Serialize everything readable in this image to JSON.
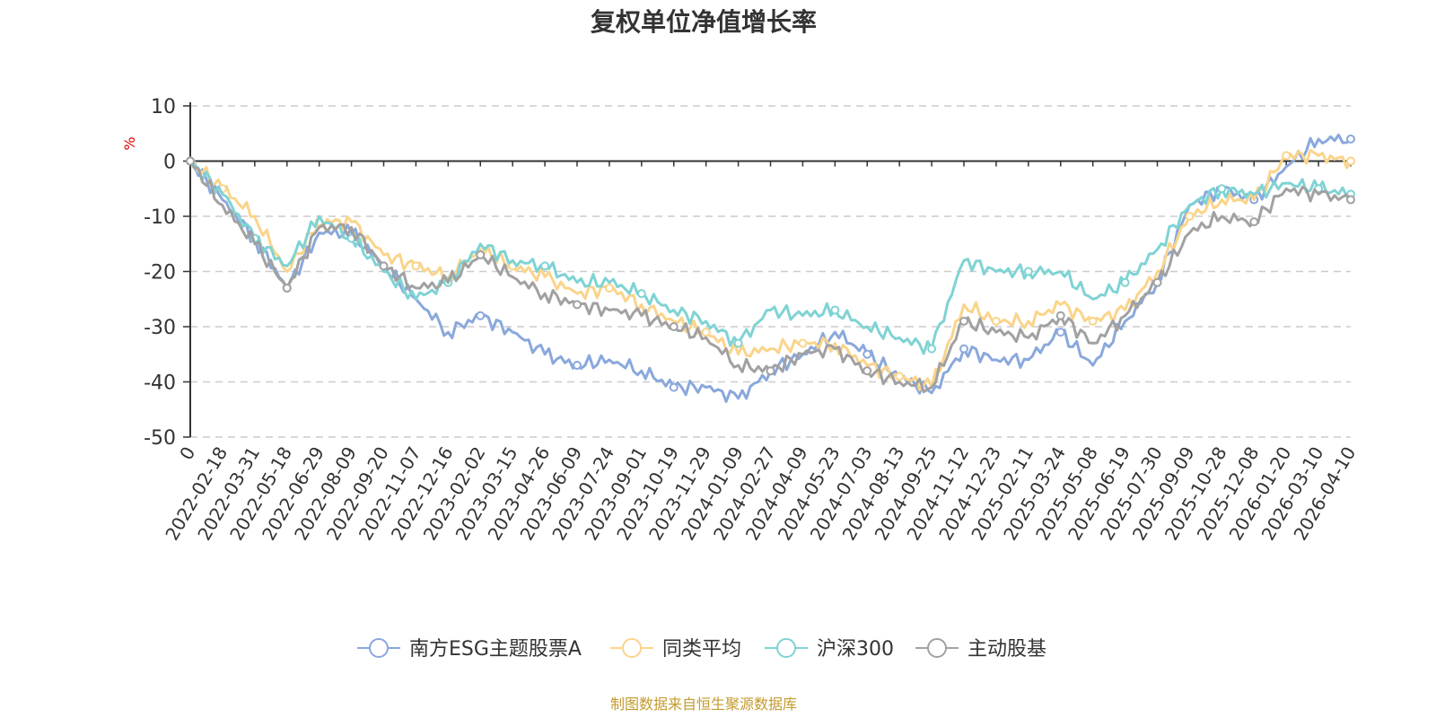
{
  "chart_data": {
    "type": "line",
    "title": "复权单位净值增长率",
    "ylabel": "%",
    "ylim": [
      -50,
      10
    ],
    "yticks": [
      10,
      0,
      -10,
      -20,
      -30,
      -40,
      -50
    ],
    "grid": true,
    "legend_position": "bottom",
    "source": "制图数据来自恒生聚源数据库",
    "x_labels": [
      "0",
      "2022-02-18",
      "2022-03-31",
      "2022-05-18",
      "2022-06-29",
      "2022-08-09",
      "2022-09-20",
      "2022-11-07",
      "2022-12-16",
      "2023-02-02",
      "2023-03-15",
      "2023-04-26",
      "2023-06-09",
      "2023-07-24",
      "2023-09-01",
      "2023-10-19",
      "2023-11-29",
      "2024-01-09",
      "2024-02-27",
      "2024-04-09",
      "2024-05-23",
      "2024-07-03",
      "2024-08-13",
      "2024-09-25",
      "2024-11-12",
      "2024-12-23",
      "2025-02-11",
      "2025-03-24",
      "2025-05-08",
      "2025-06-19",
      "2025-07-30",
      "2025-09-09",
      "2025-10-28",
      "2025-12-08",
      "2026-01-20",
      "2026-03-10",
      "2026-04-10"
    ],
    "series": [
      {
        "name": "南方ESG主题股票A",
        "color": "#8aa8dc",
        "values": [
          0,
          -7,
          -14,
          -23,
          -13,
          -13,
          -19,
          -25,
          -31,
          -28,
          -31,
          -35,
          -37,
          -36,
          -38,
          -41,
          -41,
          -43,
          -38,
          -35,
          -31,
          -35,
          -39,
          -42,
          -34,
          -36,
          -36,
          -31,
          -37,
          -29,
          -22,
          -8,
          -5,
          -7,
          -1,
          4,
          4
        ]
      },
      {
        "name": "同类平均",
        "color": "#fad48a",
        "values": [
          0,
          -5,
          -10,
          -20,
          -11,
          -11,
          -17,
          -19,
          -21,
          -16,
          -19,
          -21,
          -24,
          -23,
          -26,
          -29,
          -31,
          -35,
          -34,
          -33,
          -33,
          -37,
          -39,
          -41,
          -26,
          -29,
          -29,
          -26,
          -29,
          -27,
          -20,
          -10,
          -7,
          -7,
          1,
          1,
          0
        ]
      },
      {
        "name": "沪深300",
        "color": "#7fd3d4",
        "values": [
          0,
          -6,
          -14,
          -19,
          -10,
          -14,
          -20,
          -25,
          -22,
          -15,
          -18,
          -19,
          -22,
          -22,
          -24,
          -27,
          -29,
          -33,
          -27,
          -28,
          -27,
          -30,
          -32,
          -34,
          -18,
          -20,
          -20,
          -20,
          -25,
          -22,
          -16,
          -8,
          -5,
          -6,
          -4,
          -5,
          -6
        ]
      },
      {
        "name": "主动股基",
        "color": "#a1a1a1",
        "values": [
          0,
          -8,
          -15,
          -23,
          -12,
          -12,
          -19,
          -23,
          -22,
          -17,
          -21,
          -24,
          -26,
          -27,
          -28,
          -30,
          -32,
          -37,
          -38,
          -35,
          -34,
          -38,
          -40,
          -41,
          -29,
          -31,
          -32,
          -28,
          -33,
          -28,
          -22,
          -13,
          -10,
          -11,
          -5,
          -6,
          -7
        ]
      }
    ]
  }
}
